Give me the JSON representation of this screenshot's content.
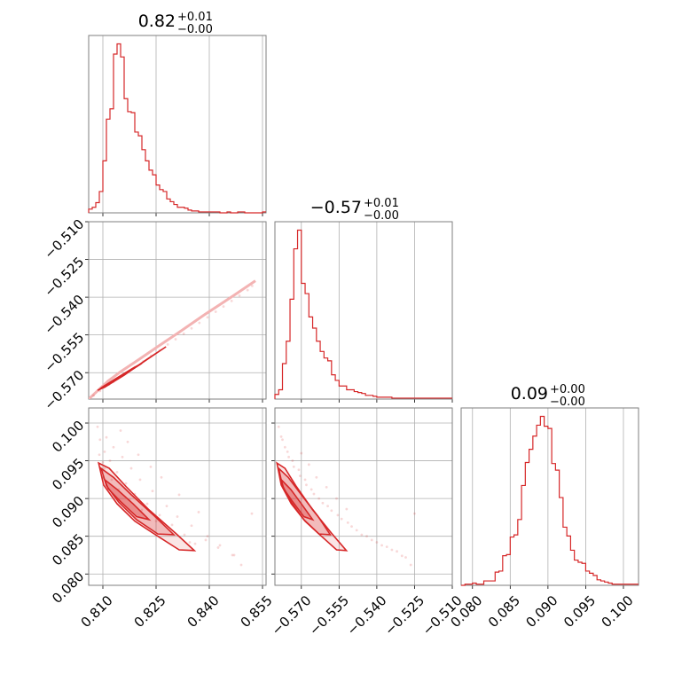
{
  "chart_data": {
    "type": "corner",
    "color": "#d62728",
    "grid": true,
    "parameters": [
      {
        "title": {
          "value": "0.82",
          "upper": "+0.01",
          "lower": "−0.00"
        },
        "range": [
          0.806,
          0.856
        ],
        "ticks": [
          0.81,
          0.825,
          0.84,
          0.855
        ],
        "tick_labels": [
          "0.810",
          "0.825",
          "0.840",
          "0.855"
        ],
        "histogram": {
          "bin_edges": [
            0.806,
            0.807,
            0.808,
            0.809,
            0.81,
            0.811,
            0.812,
            0.813,
            0.814,
            0.815,
            0.816,
            0.817,
            0.818,
            0.819,
            0.82,
            0.821,
            0.822,
            0.823,
            0.824,
            0.825,
            0.826,
            0.827,
            0.828,
            0.829,
            0.83,
            0.831,
            0.832,
            0.833,
            0.834,
            0.835,
            0.836,
            0.837,
            0.838,
            0.839,
            0.84,
            0.841,
            0.842,
            0.843,
            0.844,
            0.845,
            0.846,
            0.847,
            0.848,
            0.849,
            0.85,
            0.851,
            0.852,
            0.853,
            0.854,
            0.855,
            0.856
          ],
          "counts": [
            4,
            6,
            11,
            23,
            56,
            101,
            112,
            171,
            182,
            168,
            123,
            109,
            108,
            87,
            83,
            68,
            56,
            46,
            41,
            30,
            25,
            23,
            15,
            12,
            9,
            6,
            6,
            5,
            3,
            2,
            2,
            1,
            1,
            1,
            1,
            1,
            1,
            0,
            0,
            1,
            0,
            0,
            1,
            1,
            0,
            0,
            0,
            0,
            0,
            1
          ]
        }
      },
      {
        "title": {
          "value": "−0.57",
          "upper": "+0.01",
          "lower": "−0.00"
        },
        "range": [
          -0.5805,
          -0.51
        ],
        "ticks": [
          -0.57,
          -0.555,
          -0.54,
          -0.525,
          -0.51
        ],
        "tick_labels": [
          "−0.570",
          "−0.555",
          "−0.540",
          "−0.525",
          "−0.510"
        ],
        "histogram": {
          "bin_edges": [
            -0.5805,
            -0.579,
            -0.5775,
            -0.576,
            -0.5745,
            -0.573,
            -0.5715,
            -0.57,
            -0.5685,
            -0.567,
            -0.5655,
            -0.564,
            -0.5625,
            -0.561,
            -0.5595,
            -0.558,
            -0.5565,
            -0.555,
            -0.5535,
            -0.552,
            -0.5505,
            -0.549,
            -0.5475,
            -0.546,
            -0.5445,
            -0.543,
            -0.5415,
            -0.54,
            -0.5385,
            -0.537,
            -0.5355,
            -0.534,
            -0.5325,
            -0.531,
            -0.5295,
            -0.528,
            -0.5265,
            -0.525,
            -0.5235,
            -0.522,
            -0.5205,
            -0.519,
            -0.5175,
            -0.516,
            -0.5145,
            -0.513,
            -0.5115,
            -0.51
          ],
          "counts": [
            5,
            10,
            38,
            62,
            107,
            161,
            181,
            124,
            113,
            88,
            76,
            62,
            51,
            44,
            41,
            26,
            20,
            14,
            14,
            10,
            10,
            8,
            7,
            6,
            4,
            4,
            3,
            2,
            2,
            2,
            2,
            1,
            1,
            1,
            1,
            1,
            1,
            1,
            1,
            1,
            1,
            1,
            1,
            1,
            1,
            1,
            1
          ]
        }
      },
      {
        "title": {
          "value": "0.09",
          "upper": "+0.00",
          "lower": "−0.00"
        },
        "range": [
          0.0785,
          0.102
        ],
        "ticks": [
          0.08,
          0.085,
          0.09,
          0.095,
          0.1
        ],
        "tick_labels": [
          "0.080",
          "0.085",
          "0.090",
          "0.095",
          "0.100"
        ],
        "histogram": {
          "bin_edges": [
            0.0785,
            0.079,
            0.0795,
            0.08,
            0.0805,
            0.081,
            0.0815,
            0.082,
            0.0825,
            0.083,
            0.0835,
            0.084,
            0.0845,
            0.085,
            0.0855,
            0.086,
            0.0865,
            0.087,
            0.0875,
            0.088,
            0.0885,
            0.089,
            0.0895,
            0.09,
            0.0905,
            0.091,
            0.0915,
            0.092,
            0.0925,
            0.093,
            0.0935,
            0.094,
            0.0945,
            0.095,
            0.0955,
            0.096,
            0.0965,
            0.097,
            0.0975,
            0.098,
            0.0985,
            0.099,
            0.0995,
            0.1,
            0.1005,
            0.101,
            0.1015,
            0.102
          ],
          "counts": [
            0,
            1,
            1,
            2,
            1,
            1,
            4,
            4,
            4,
            12,
            13,
            27,
            28,
            44,
            46,
            60,
            91,
            112,
            124,
            136,
            146,
            154,
            145,
            143,
            111,
            105,
            80,
            53,
            45,
            32,
            23,
            21,
            20,
            13,
            11,
            9,
            5,
            4,
            3,
            2,
            1,
            1,
            1,
            1,
            1,
            1,
            1
          ]
        }
      }
    ],
    "pairs": [
      {
        "row": 1,
        "col": 0,
        "description_free": true,
        "trend": {
          "x": [
            0.806,
            0.8115,
            0.815,
            0.8195,
            0.8255,
            0.831,
            0.8385,
            0.847,
            0.853
          ],
          "y": [
            -0.5805,
            -0.5733,
            -0.5696,
            -0.5654,
            -0.5596,
            -0.5544,
            -0.5471,
            -0.5392,
            -0.5335
          ]
        },
        "scatter": {
          "x": [
            0.8074,
            0.8092,
            0.8117,
            0.8129,
            0.8143,
            0.8166,
            0.819,
            0.8214,
            0.8236,
            0.826,
            0.8283,
            0.8305,
            0.8328,
            0.835,
            0.8372,
            0.8395,
            0.8418,
            0.844,
            0.8463,
            0.8485,
            0.8508,
            0.8521
          ],
          "y": [
            -0.5791,
            -0.5773,
            -0.5748,
            -0.5737,
            -0.5723,
            -0.57,
            -0.5678,
            -0.5655,
            -0.5633,
            -0.5611,
            -0.5588,
            -0.5567,
            -0.5545,
            -0.5524,
            -0.5502,
            -0.548,
            -0.5458,
            -0.5437,
            -0.5415,
            -0.5394,
            -0.5372,
            -0.5355
          ]
        },
        "contours": [
          {
            "x": [
              0.8085,
              0.812,
              0.8175,
              0.824,
              0.8278,
              0.8225,
              0.816,
              0.8105,
              0.8085
            ],
            "y": [
              -0.577,
              -0.5745,
              -0.5695,
              -0.5633,
              -0.5597,
              -0.5646,
              -0.571,
              -0.5758,
              -0.577
            ]
          },
          {
            "x": [
              0.8092,
              0.8125,
              0.8165,
              0.821,
              0.8185,
              0.8142,
              0.81,
              0.8092
            ],
            "y": [
              -0.5764,
              -0.5738,
              -0.5703,
              -0.5663,
              -0.5682,
              -0.5719,
              -0.5756,
              -0.5764
            ]
          }
        ]
      },
      {
        "row": 2,
        "col": 0,
        "scatter": {
          "x": [
            0.8085,
            0.8092,
            0.8105,
            0.812,
            0.814,
            0.8165,
            0.819,
            0.8225,
            0.826,
            0.8295,
            0.833,
            0.836,
            0.811,
            0.813,
            0.8155,
            0.818,
            0.8205,
            0.824,
            0.828,
            0.831,
            0.835,
            0.8395,
            0.843,
            0.8465,
            0.849,
            0.815,
            0.817,
            0.82,
            0.8235,
            0.8265,
            0.8315,
            0.837,
            0.8105,
            0.8125,
            0.8145,
            0.8175,
            0.821,
            0.825,
            0.809,
            0.81,
            0.852,
            0.847,
            0.8425,
            0.839,
            0.8345
          ],
          "y": [
            0.0995,
            0.0978,
            0.0962,
            0.095,
            0.0935,
            0.092,
            0.0906,
            0.0893,
            0.0878,
            0.0865,
            0.0852,
            0.084,
            0.0981,
            0.0968,
            0.0955,
            0.094,
            0.0925,
            0.091,
            0.089,
            0.0876,
            0.0864,
            0.085,
            0.0838,
            0.0825,
            0.0812,
            0.099,
            0.0975,
            0.0958,
            0.0942,
            0.0928,
            0.0905,
            0.0882,
            0.094,
            0.0925,
            0.0912,
            0.0898,
            0.0885,
            0.087,
            0.0958,
            0.0948,
            0.088,
            0.0825,
            0.0835,
            0.0845,
            0.0842
          ]
        },
        "contours": [
          {
            "x": [
              0.8088,
              0.8118,
              0.8165,
              0.823,
              0.8305,
              0.8358,
              0.8315,
              0.8255,
              0.819,
              0.814,
              0.8102,
              0.8088
            ],
            "y": [
              0.0947,
              0.094,
              0.0916,
              0.0885,
              0.0854,
              0.0831,
              0.0832,
              0.085,
              0.087,
              0.0893,
              0.0918,
              0.0947
            ]
          },
          {
            "x": [
              0.8095,
              0.813,
              0.818,
              0.8245,
              0.83,
              0.8255,
              0.8195,
              0.8145,
              0.811,
              0.8095
            ],
            "y": [
              0.094,
              0.0928,
              0.0905,
              0.0877,
              0.0852,
              0.0853,
              0.0872,
              0.0895,
              0.0917,
              0.094
            ]
          },
          {
            "x": [
              0.8105,
              0.814,
              0.8185,
              0.823,
              0.8195,
              0.815,
              0.8115,
              0.8105
            ],
            "y": [
              0.0925,
              0.0912,
              0.0893,
              0.0872,
              0.0876,
              0.0896,
              0.0913,
              0.0925
            ]
          }
        ]
      },
      {
        "row": 2,
        "col": 1,
        "scatter": {
          "x": [
            -0.579,
            -0.578,
            -0.5765,
            -0.575,
            -0.573,
            -0.5705,
            -0.568,
            -0.565,
            -0.5615,
            -0.558,
            -0.554,
            -0.55,
            -0.546,
            -0.542,
            -0.538,
            -0.534,
            -0.53,
            -0.5265,
            -0.5775,
            -0.5755,
            -0.5735,
            -0.571,
            -0.5685,
            -0.566,
            -0.563,
            -0.5595,
            -0.5555,
            -0.5515,
            -0.548,
            -0.544,
            -0.54,
            -0.536,
            -0.532,
            -0.5285,
            -0.525,
            -0.57,
            -0.567,
            -0.564,
            -0.56,
            -0.556,
            -0.552
          ],
          "y": [
            0.0995,
            0.0982,
            0.0968,
            0.0955,
            0.0942,
            0.093,
            0.0918,
            0.0906,
            0.0894,
            0.0884,
            0.0873,
            0.0863,
            0.0852,
            0.0845,
            0.0838,
            0.0832,
            0.0824,
            0.0812,
            0.0978,
            0.0962,
            0.095,
            0.0938,
            0.0925,
            0.0912,
            0.09,
            0.089,
            0.0878,
            0.0868,
            0.0858,
            0.085,
            0.0842,
            0.0836,
            0.083,
            0.0822,
            0.088,
            0.096,
            0.0945,
            0.0928,
            0.0915,
            0.09,
            0.0886
          ]
        },
        "contours": [
          {
            "x": [
              -0.5797,
              -0.5765,
              -0.572,
              -0.5655,
              -0.558,
              -0.5521,
              -0.556,
              -0.562,
              -0.5685,
              -0.574,
              -0.578,
              -0.5797
            ],
            "y": [
              0.0947,
              0.094,
              0.0916,
              0.0885,
              0.0854,
              0.0831,
              0.0832,
              0.085,
              0.087,
              0.0893,
              0.0918,
              0.0947
            ]
          },
          {
            "x": [
              -0.579,
              -0.5752,
              -0.57,
              -0.5635,
              -0.5585,
              -0.563,
              -0.569,
              -0.574,
              -0.5775,
              -0.579
            ],
            "y": [
              0.094,
              0.0928,
              0.0905,
              0.0877,
              0.0852,
              0.0853,
              0.0872,
              0.0895,
              0.0917,
              0.094
            ]
          },
          {
            "x": [
              -0.578,
              -0.5742,
              -0.57,
              -0.5655,
              -0.569,
              -0.5735,
              -0.577,
              -0.578
            ],
            "y": [
              0.0925,
              0.0912,
              0.0893,
              0.0872,
              0.0876,
              0.0896,
              0.0913,
              0.0925
            ]
          }
        ]
      }
    ]
  }
}
